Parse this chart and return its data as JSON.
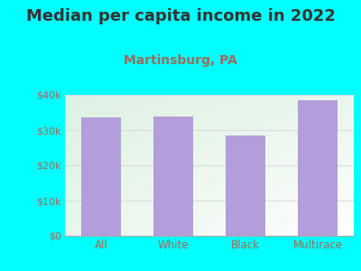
{
  "title": "Median per capita income in 2022",
  "subtitle": "Martinsburg, PA",
  "categories": [
    "All",
    "White",
    "Black",
    "Multirace"
  ],
  "values": [
    33500,
    33800,
    28500,
    38500
  ],
  "bar_color": "#b39ddb",
  "title_fontsize": 13,
  "subtitle_fontsize": 10,
  "subtitle_color": "#9e6b5a",
  "title_color": "#333333",
  "tick_color": "#9e6b5a",
  "background_color": "#00FFFF",
  "ylim": [
    0,
    40000
  ],
  "yticks": [
    0,
    10000,
    20000,
    30000,
    40000
  ],
  "ytick_labels": [
    "$0",
    "$10k",
    "$20k",
    "$30k",
    "$40k"
  ],
  "grid_color": "#dddddd"
}
